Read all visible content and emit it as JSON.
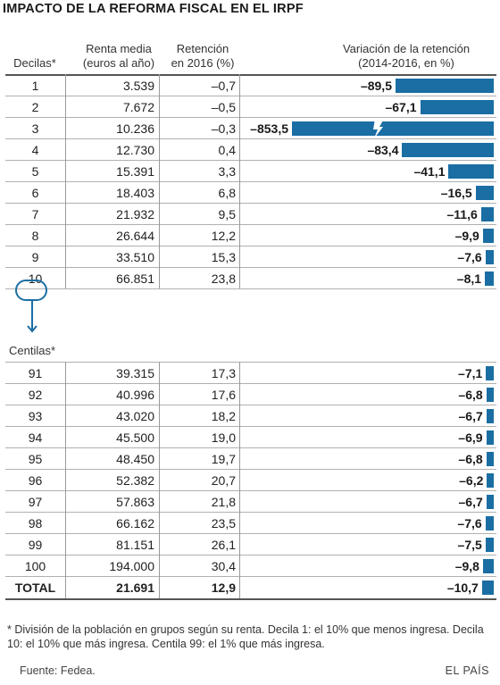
{
  "title": "IMPACTO DE LA REFORMA FISCAL EN EL IRPF",
  "headers": {
    "col0": "Decilas*",
    "col1_line1": "Renta media",
    "col1_line2": "(euros al año)",
    "col2_line1": "Retención",
    "col2_line2": "en 2016 (%)",
    "col3_line1": "Variación de la retención",
    "col3_line2": "(2014-2016, en %)"
  },
  "subheader": "Centilas*",
  "footnote": "* División de la población en grupos según su renta. Decila 1: el 10% que menos ingresa. Decila 10: el 10% que más ingresa. Centila 99: el 1% que más ingresa.",
  "source": "Fuente: Fedea.",
  "brand": "EL PAÍS",
  "colors": {
    "bar": "#1a6ea3",
    "circle": "#1a6ea3"
  },
  "icons": {
    "break_marker": "lightning-break-icon",
    "arrow": "arrow-down-icon"
  },
  "chart_data": {
    "type": "table",
    "bar_scale_max": 89.5,
    "truncated_bar_value": -853.5,
    "deciles": [
      {
        "label": "1",
        "renta": "3.539",
        "retencion": "–0,7",
        "variacion": "–89,5",
        "value": -89.5
      },
      {
        "label": "2",
        "renta": "7.672",
        "retencion": "–0,5",
        "variacion": "–67,1",
        "value": -67.1
      },
      {
        "label": "3",
        "renta": "10.236",
        "retencion": "–0,3",
        "variacion": "–853,5",
        "value": -853.5
      },
      {
        "label": "4",
        "renta": "12.730",
        "retencion": "0,4",
        "variacion": "–83,4",
        "value": -83.4
      },
      {
        "label": "5",
        "renta": "15.391",
        "retencion": "3,3",
        "variacion": "–41,1",
        "value": -41.1
      },
      {
        "label": "6",
        "renta": "18.403",
        "retencion": "6,8",
        "variacion": "–16,5",
        "value": -16.5
      },
      {
        "label": "7",
        "renta": "21.932",
        "retencion": "9,5",
        "variacion": "–11,6",
        "value": -11.6
      },
      {
        "label": "8",
        "renta": "26.644",
        "retencion": "12,2",
        "variacion": "–9,9",
        "value": -9.9
      },
      {
        "label": "9",
        "renta": "33.510",
        "retencion": "15,3",
        "variacion": "–7,6",
        "value": -7.6
      },
      {
        "label": "10",
        "renta": "66.851",
        "retencion": "23,8",
        "variacion": "–8,1",
        "value": -8.1
      }
    ],
    "centiles": [
      {
        "label": "91",
        "renta": "39.315",
        "retencion": "17,3",
        "variacion": "–7,1",
        "value": -7.1
      },
      {
        "label": "92",
        "renta": "40.996",
        "retencion": "17,6",
        "variacion": "–6,8",
        "value": -6.8
      },
      {
        "label": "93",
        "renta": "43.020",
        "retencion": "18,2",
        "variacion": "–6,7",
        "value": -6.7
      },
      {
        "label": "94",
        "renta": "45.500",
        "retencion": "19,0",
        "variacion": "–6,9",
        "value": -6.9
      },
      {
        "label": "95",
        "renta": "48.450",
        "retencion": "19,7",
        "variacion": "–6,8",
        "value": -6.8
      },
      {
        "label": "96",
        "renta": "52.382",
        "retencion": "20,7",
        "variacion": "–6,2",
        "value": -6.2
      },
      {
        "label": "97",
        "renta": "57.863",
        "retencion": "21,8",
        "variacion": "–6,7",
        "value": -6.7
      },
      {
        "label": "98",
        "renta": "66.162",
        "retencion": "23,5",
        "variacion": "–7,6",
        "value": -7.6
      },
      {
        "label": "99",
        "renta": "81.151",
        "retencion": "26,1",
        "variacion": "–7,5",
        "value": -7.5
      },
      {
        "label": "100",
        "renta": "194.000",
        "retencion": "30,4",
        "variacion": "–9,8",
        "value": -9.8
      }
    ],
    "total": {
      "label": "TOTAL",
      "renta": "21.691",
      "retencion": "12,9",
      "variacion": "–10,7",
      "value": -10.7
    }
  }
}
